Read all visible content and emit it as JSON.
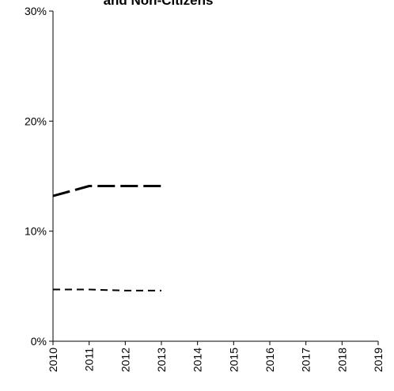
{
  "chart_data": {
    "type": "line",
    "title": "and Non-Citizens",
    "xlabel": "",
    "ylabel": "",
    "x": [
      "2010",
      "2011",
      "2012",
      "2013",
      "2014",
      "2015",
      "2016",
      "2017",
      "2018",
      "2019"
    ],
    "ylim": [
      0,
      0.3
    ],
    "yticks": [
      0,
      0.1,
      0.2,
      0.3
    ],
    "ytick_labels": [
      "0%",
      "10%",
      "20%",
      "30%"
    ],
    "grid": false,
    "legend": "none",
    "series": [
      {
        "style": "long-dash",
        "color": "#000000",
        "values": [
          0.132,
          0.141,
          0.141,
          0.141,
          null,
          null,
          null,
          null,
          null,
          null
        ]
      },
      {
        "style": "short-dash",
        "color": "#000000",
        "values": [
          0.047,
          0.047,
          0.046,
          0.046,
          null,
          null,
          null,
          null,
          null,
          null
        ]
      }
    ]
  }
}
